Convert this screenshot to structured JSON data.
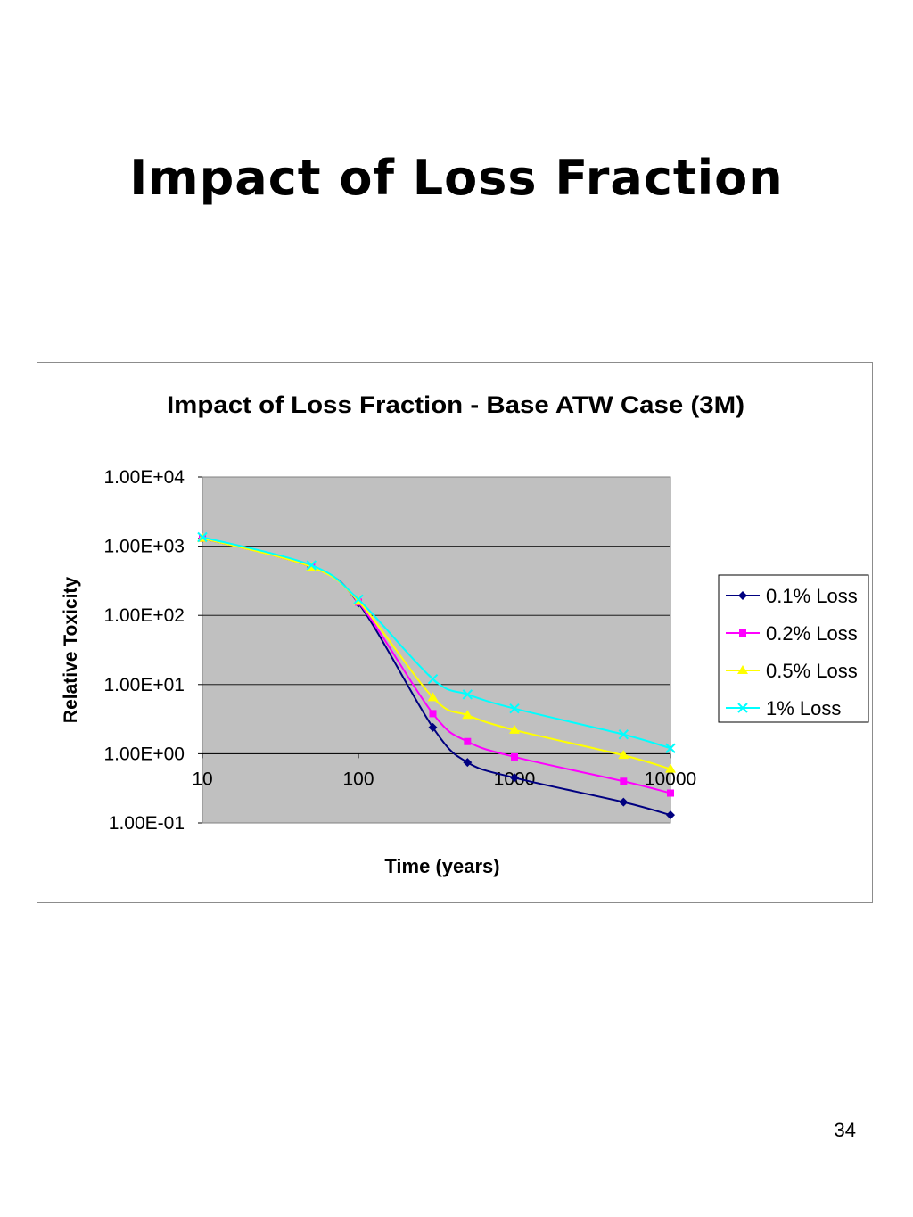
{
  "slide": {
    "title": "Impact of Loss Fraction",
    "page_number": "34"
  },
  "chart_data": {
    "type": "line",
    "title": "Impact of Loss Fraction - Base ATW Case (3M)",
    "xlabel": "Time (years)",
    "ylabel": "Relative Toxicity",
    "x_scale": "log",
    "y_scale": "log",
    "xlim": [
      10,
      10000
    ],
    "ylim": [
      0.1,
      10000
    ],
    "x_ticks": [
      "10",
      "100",
      "1000",
      "10000"
    ],
    "y_ticks": [
      "1.00E-01",
      "1.00E+00",
      "1.00E+01",
      "1.00E+02",
      "1.00E+03",
      "1.00E+04"
    ],
    "grid": "horizontal major gridlines",
    "plot_background": "#c0c0c0",
    "legend_position": "right",
    "series": [
      {
        "name": "0.1% Loss",
        "color": "#000080",
        "marker": "diamond",
        "x": [
          10,
          50,
          100,
          300,
          500,
          1000,
          5000,
          10000
        ],
        "y": [
          1300,
          500,
          150,
          2.4,
          0.75,
          0.45,
          0.2,
          0.13
        ]
      },
      {
        "name": "0.2% Loss",
        "color": "#ff00ff",
        "marker": "square",
        "x": [
          10,
          50,
          100,
          300,
          500,
          1000,
          5000,
          10000
        ],
        "y": [
          1300,
          500,
          155,
          3.8,
          1.5,
          0.9,
          0.4,
          0.27
        ]
      },
      {
        "name": "0.5% Loss",
        "color": "#ffff00",
        "marker": "triangle",
        "x": [
          10,
          50,
          100,
          300,
          500,
          1000,
          5000,
          10000
        ],
        "y": [
          1300,
          500,
          160,
          6.5,
          3.6,
          2.2,
          0.95,
          0.6
        ]
      },
      {
        "name": "1% Loss",
        "color": "#00ffff",
        "marker": "x",
        "x": [
          10,
          50,
          100,
          300,
          500,
          1000,
          5000,
          10000
        ],
        "y": [
          1350,
          530,
          170,
          12,
          7.2,
          4.5,
          1.9,
          1.2
        ]
      }
    ]
  }
}
